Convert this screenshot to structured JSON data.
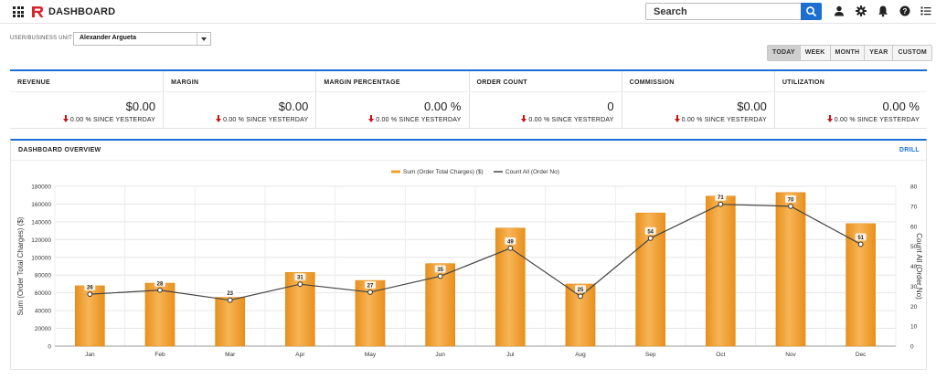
{
  "header": {
    "title": "DASHBOARD",
    "search_placeholder": "Search",
    "icons": [
      "apps-grid-icon",
      "logo-icon",
      "search-icon",
      "user-icon",
      "settings-icon",
      "bell-icon",
      "help-icon",
      "list-icon"
    ]
  },
  "filter": {
    "label": "USER/BUSINESS UNIT",
    "selected": "Alexander Argueta"
  },
  "ranges": [
    {
      "label": "TODAY",
      "active": true
    },
    {
      "label": "WEEK",
      "active": false
    },
    {
      "label": "MONTH",
      "active": false
    },
    {
      "label": "YEAR",
      "active": false
    },
    {
      "label": "CUSTOM",
      "active": false
    }
  ],
  "kpis": [
    {
      "title": "REVENUE",
      "value": "$0.00",
      "change": "0.00 % SINCE YESTERDAY"
    },
    {
      "title": "MARGIN",
      "value": "$0.00",
      "change": "0.00 % SINCE YESTERDAY"
    },
    {
      "title": "MARGIN PERCENTAGE",
      "value": "0.00 %",
      "change": "0.00 % SINCE YESTERDAY"
    },
    {
      "title": "ORDER COUNT",
      "value": "0",
      "change": "0.00 % SINCE YESTERDAY"
    },
    {
      "title": "COMMISSION",
      "value": "$0.00",
      "change": "0.00 % SINCE YESTERDAY"
    },
    {
      "title": "UTILIZATION",
      "value": "0.00 %",
      "change": "0.00 % SINCE YESTERDAY"
    }
  ],
  "overview": {
    "title": "DASHBOARD OVERVIEW",
    "drill_label": "DRILL"
  },
  "colors": {
    "accent": "#1a6fd4",
    "bar": "#f0a12c",
    "line": "#444444",
    "down_arrow": "#c81414"
  },
  "chart_data": {
    "type": "bar",
    "categories": [
      "Jan",
      "Feb",
      "Mar",
      "Apr",
      "May",
      "Jun",
      "Jul",
      "Aug",
      "Sep",
      "Oct",
      "Nov",
      "Dec"
    ],
    "series": [
      {
        "name": "Sum (Order Total Charges) ($)",
        "type": "bar",
        "axis": "left",
        "values": [
          68000,
          71000,
          55000,
          83000,
          74000,
          93000,
          133000,
          70000,
          150000,
          169000,
          173000,
          138000
        ]
      },
      {
        "name": "Count All (Order No)",
        "type": "line",
        "axis": "right",
        "values": [
          26,
          28,
          23,
          31,
          27,
          35,
          49,
          25,
          54,
          71,
          70,
          51
        ]
      }
    ],
    "ylabel": "Sum (Order Total Charges) ($)",
    "y2label": "Count All (Order No)",
    "ylim": [
      0,
      180000
    ],
    "yticks": [
      "0",
      "20000",
      "40000",
      "60000",
      "80000",
      "100000",
      "120000",
      "140000",
      "160000",
      "180000"
    ],
    "y2lim": [
      0,
      80
    ],
    "y2ticks": [
      "0",
      "10",
      "20",
      "30",
      "40",
      "50",
      "60",
      "70",
      "80"
    ],
    "legend_position": "top-center",
    "grid": true
  }
}
